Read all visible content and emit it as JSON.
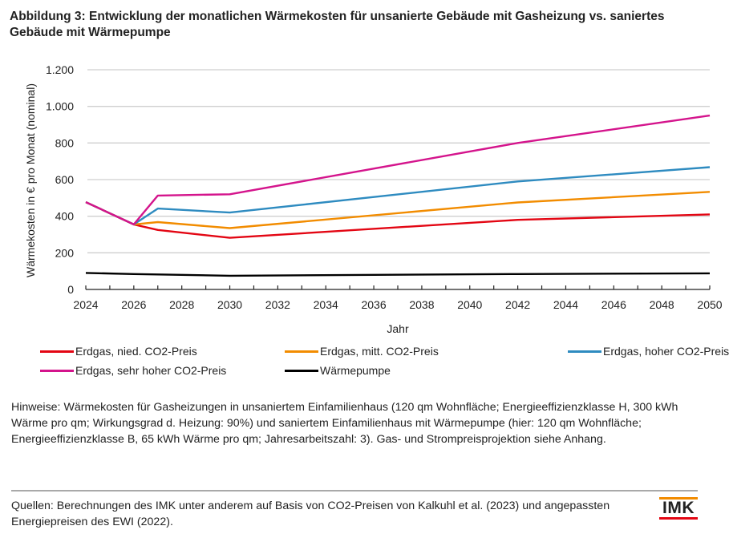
{
  "figure": {
    "title": "Abbildung 3: Entwicklung der monatlichen Wärmekosten für unsanierte Gebäude mit Gasheizung vs. saniertes Gebäude mit Wärmepumpe",
    "notes": "Hinweise: Wärmekosten für Gasheizungen in unsaniertem Einfamilienhaus (120 qm Wohnfläche; Energieeffizienzklasse H, 300 kWh Wärme pro qm; Wirkungsgrad d. Heizung: 90%) und saniertem Einfamilienhaus mit Wärmepumpe (hier: 120 qm Wohnfläche; Energieeffizienzklasse B, 65 kWh Wärme pro qm; Jahresarbeitszahl: 3). Gas- und Strompreisprojektion siehe Anhang.",
    "sources": "Quellen: Berechnungen des IMK unter anderem auf Basis von CO2-Preisen von Kalkuhl et al. (2023) und angepassten Energiepreisen des EWI (2022).",
    "logo_text": "IMK",
    "logo_colors": {
      "top": "#f28c00",
      "bottom": "#e30613"
    }
  },
  "chart_data": {
    "type": "line",
    "title": "Abbildung 3: Entwicklung der monatlichen Wärmekosten für unsanierte Gebäude mit Gasheizung vs. saniertes Gebäude mit Wärmepumpe",
    "xlabel": "Jahr",
    "ylabel": "Wärmekosten in € pro Monat (nominal)",
    "xlim": [
      2024,
      2050
    ],
    "ylim": [
      0,
      1200
    ],
    "x_ticks": [
      "2024",
      "2026",
      "2028",
      "2030",
      "2032",
      "2034",
      "2036",
      "2038",
      "2040",
      "2042",
      "2044",
      "2046",
      "2048",
      "2050"
    ],
    "y_ticks": [
      {
        "value": 0,
        "label": "0"
      },
      {
        "value": 200,
        "label": "200"
      },
      {
        "value": 400,
        "label": "400"
      },
      {
        "value": 600,
        "label": "600"
      },
      {
        "value": 800,
        "label": "800"
      },
      {
        "value": 1000,
        "label": "1.000"
      },
      {
        "value": 1200,
        "label": "1.200"
      }
    ],
    "grid": "horizontal",
    "legend_position": "bottom",
    "x": [
      2024,
      2026,
      2027,
      2030,
      2042,
      2050
    ],
    "series": [
      {
        "name": "Erdgas, nied. CO2-Preis",
        "color": "#e30613",
        "values": [
          477,
          355,
          325,
          282,
          380,
          410
        ]
      },
      {
        "name": "Erdgas, mitt. CO2-Preis",
        "color": "#f28c00",
        "values": [
          477,
          355,
          368,
          335,
          475,
          533
        ]
      },
      {
        "name": "Erdgas, hoher CO2-Preis",
        "color": "#2e8bc0",
        "values": [
          477,
          355,
          442,
          420,
          590,
          668
        ]
      },
      {
        "name": "Erdgas, sehr hoher CO2-Preis",
        "color": "#d4148c",
        "values": [
          477,
          355,
          513,
          520,
          800,
          950
        ]
      },
      {
        "name": "Wärmepumpe",
        "color": "#000000",
        "values": [
          90,
          84,
          82,
          75,
          84,
          88
        ]
      }
    ]
  }
}
